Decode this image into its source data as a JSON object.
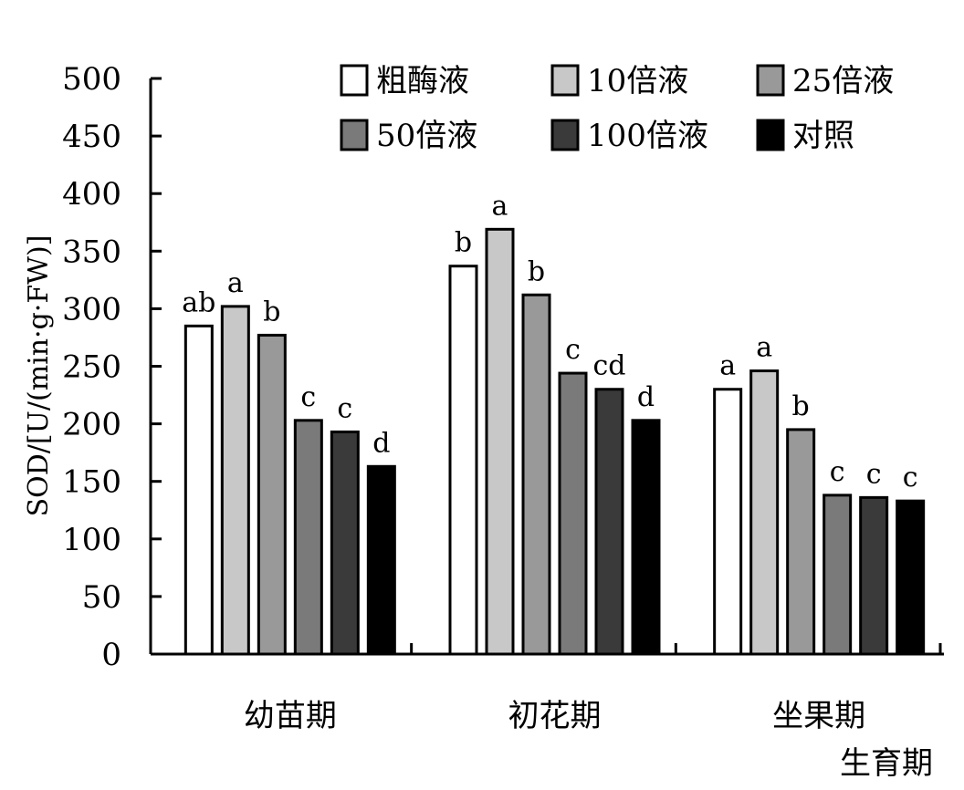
{
  "chart_data": {
    "type": "bar",
    "ylabel": "SOD/[U/(min·g·FW)]",
    "xlabel": "生育期",
    "ylim": [
      0,
      500
    ],
    "yticks": [
      0,
      50,
      100,
      150,
      200,
      250,
      300,
      350,
      400,
      450,
      500
    ],
    "categories": [
      "幼苗期",
      "初花期",
      "坐果期"
    ],
    "legend_position": "top-right",
    "series": [
      {
        "name": "粗酶液",
        "color": "#ffffff",
        "values": [
          285,
          337,
          230
        ],
        "significance": [
          "ab",
          "b",
          "a"
        ]
      },
      {
        "name": "10倍液",
        "color": "#c8c8c8",
        "values": [
          302,
          369,
          246
        ],
        "significance": [
          "a",
          "a",
          "a"
        ]
      },
      {
        "name": "25倍液",
        "color": "#999999",
        "values": [
          277,
          312,
          195
        ],
        "significance": [
          "b",
          "b",
          "b"
        ]
      },
      {
        "name": "50倍液",
        "color": "#7a7a7a",
        "values": [
          203,
          244,
          138
        ],
        "significance": [
          "c",
          "c",
          "c"
        ]
      },
      {
        "name": "100倍液",
        "color": "#3a3a3a",
        "values": [
          193,
          230,
          136
        ],
        "significance": [
          "c",
          "cd",
          "c"
        ]
      },
      {
        "name": "对照",
        "color": "#000000",
        "values": [
          163,
          203,
          133
        ],
        "significance": [
          "d",
          "d",
          "c"
        ]
      }
    ]
  }
}
